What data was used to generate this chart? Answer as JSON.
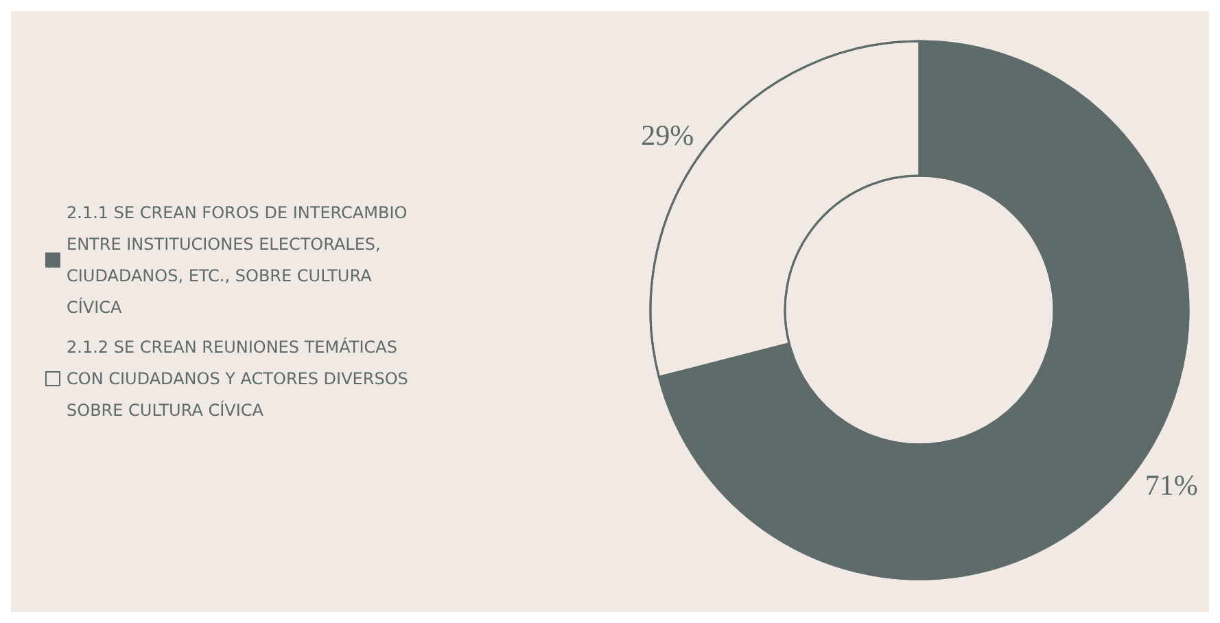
{
  "chart_data": {
    "type": "donut",
    "categories": [
      "2.1.1 SE CREAN FOROS DE INTERCAMBIO ENTRE INSTITUCIONES ELECTORALES, CIUDADANOS, ETC., SOBRE CULTURA CÍVICA",
      "2.1.2 SE CREAN REUNIONES TEMÁTICAS CON CIUDADANOS Y ACTORES DIVERSOS SOBRE CULTURA CÍVICA"
    ],
    "values": [
      71,
      29
    ],
    "colors": [
      "#5e6b6a",
      "#f1e9e3"
    ],
    "value_labels": [
      "71%",
      "29%"
    ],
    "legend": "left"
  }
}
